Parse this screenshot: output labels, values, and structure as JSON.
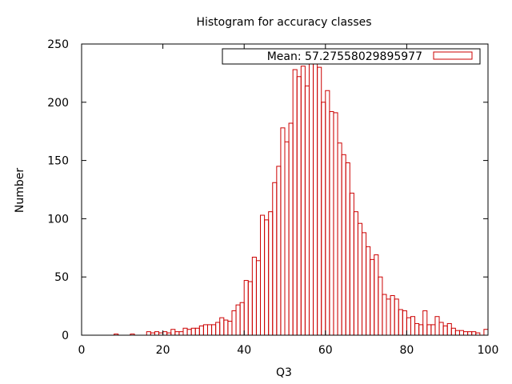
{
  "chart_data": {
    "type": "bar",
    "title": "Histogram for accuracy classes",
    "xlabel": "Q3",
    "ylabel": "Number",
    "xlim": [
      0,
      100
    ],
    "ylim": [
      0,
      250
    ],
    "xticks": [
      0,
      20,
      40,
      60,
      80,
      100
    ],
    "yticks": [
      0,
      50,
      100,
      150,
      200,
      250
    ],
    "bin_width": 1,
    "grid": false,
    "legend_position": "top-right",
    "series": [
      {
        "name": "Mean: 57.27558029895977",
        "color": "#cc0000",
        "bins": [
          {
            "x": 8.5,
            "y": 1
          },
          {
            "x": 12.5,
            "y": 1
          },
          {
            "x": 16.5,
            "y": 3
          },
          {
            "x": 17.5,
            "y": 2
          },
          {
            "x": 18.5,
            "y": 3
          },
          {
            "x": 19.5,
            "y": 2
          },
          {
            "x": 20.5,
            "y": 3
          },
          {
            "x": 21.5,
            "y": 2
          },
          {
            "x": 22.5,
            "y": 5
          },
          {
            "x": 23.5,
            "y": 3
          },
          {
            "x": 24.5,
            "y": 3
          },
          {
            "x": 25.5,
            "y": 6
          },
          {
            "x": 26.5,
            "y": 5
          },
          {
            "x": 27.5,
            "y": 6
          },
          {
            "x": 28.5,
            "y": 6
          },
          {
            "x": 29.5,
            "y": 8
          },
          {
            "x": 30.5,
            "y": 9
          },
          {
            "x": 31.5,
            "y": 9
          },
          {
            "x": 32.5,
            "y": 9
          },
          {
            "x": 33.5,
            "y": 11
          },
          {
            "x": 34.5,
            "y": 15
          },
          {
            "x": 35.5,
            "y": 13
          },
          {
            "x": 36.5,
            "y": 12
          },
          {
            "x": 37.5,
            "y": 21
          },
          {
            "x": 38.5,
            "y": 26
          },
          {
            "x": 39.5,
            "y": 28
          },
          {
            "x": 40.5,
            "y": 47
          },
          {
            "x": 41.5,
            "y": 46
          },
          {
            "x": 42.5,
            "y": 67
          },
          {
            "x": 43.5,
            "y": 64
          },
          {
            "x": 44.5,
            "y": 103
          },
          {
            "x": 45.5,
            "y": 99
          },
          {
            "x": 46.5,
            "y": 106
          },
          {
            "x": 47.5,
            "y": 131
          },
          {
            "x": 48.5,
            "y": 145
          },
          {
            "x": 49.5,
            "y": 178
          },
          {
            "x": 50.5,
            "y": 166
          },
          {
            "x": 51.5,
            "y": 182
          },
          {
            "x": 52.5,
            "y": 228
          },
          {
            "x": 53.5,
            "y": 222
          },
          {
            "x": 54.5,
            "y": 231
          },
          {
            "x": 55.5,
            "y": 214
          },
          {
            "x": 56.5,
            "y": 235
          },
          {
            "x": 57.5,
            "y": 240
          },
          {
            "x": 58.5,
            "y": 230
          },
          {
            "x": 59.5,
            "y": 200
          },
          {
            "x": 60.5,
            "y": 210
          },
          {
            "x": 61.5,
            "y": 192
          },
          {
            "x": 62.5,
            "y": 191
          },
          {
            "x": 63.5,
            "y": 165
          },
          {
            "x": 64.5,
            "y": 155
          },
          {
            "x": 65.5,
            "y": 148
          },
          {
            "x": 66.5,
            "y": 122
          },
          {
            "x": 67.5,
            "y": 106
          },
          {
            "x": 68.5,
            "y": 96
          },
          {
            "x": 69.5,
            "y": 88
          },
          {
            "x": 70.5,
            "y": 76
          },
          {
            "x": 71.5,
            "y": 65
          },
          {
            "x": 72.5,
            "y": 69
          },
          {
            "x": 73.5,
            "y": 50
          },
          {
            "x": 74.5,
            "y": 35
          },
          {
            "x": 75.5,
            "y": 31
          },
          {
            "x": 76.5,
            "y": 34
          },
          {
            "x": 77.5,
            "y": 31
          },
          {
            "x": 78.5,
            "y": 22
          },
          {
            "x": 79.5,
            "y": 21
          },
          {
            "x": 80.5,
            "y": 15
          },
          {
            "x": 81.5,
            "y": 16
          },
          {
            "x": 82.5,
            "y": 10
          },
          {
            "x": 83.5,
            "y": 9
          },
          {
            "x": 84.5,
            "y": 21
          },
          {
            "x": 85.5,
            "y": 9
          },
          {
            "x": 86.5,
            "y": 9
          },
          {
            "x": 87.5,
            "y": 16
          },
          {
            "x": 88.5,
            "y": 11
          },
          {
            "x": 89.5,
            "y": 8
          },
          {
            "x": 90.5,
            "y": 10
          },
          {
            "x": 91.5,
            "y": 6
          },
          {
            "x": 92.5,
            "y": 4
          },
          {
            "x": 93.5,
            "y": 4
          },
          {
            "x": 94.5,
            "y": 3
          },
          {
            "x": 95.5,
            "y": 3
          },
          {
            "x": 96.5,
            "y": 3
          },
          {
            "x": 97.5,
            "y": 2
          },
          {
            "x": 99.5,
            "y": 5
          }
        ]
      }
    ]
  }
}
